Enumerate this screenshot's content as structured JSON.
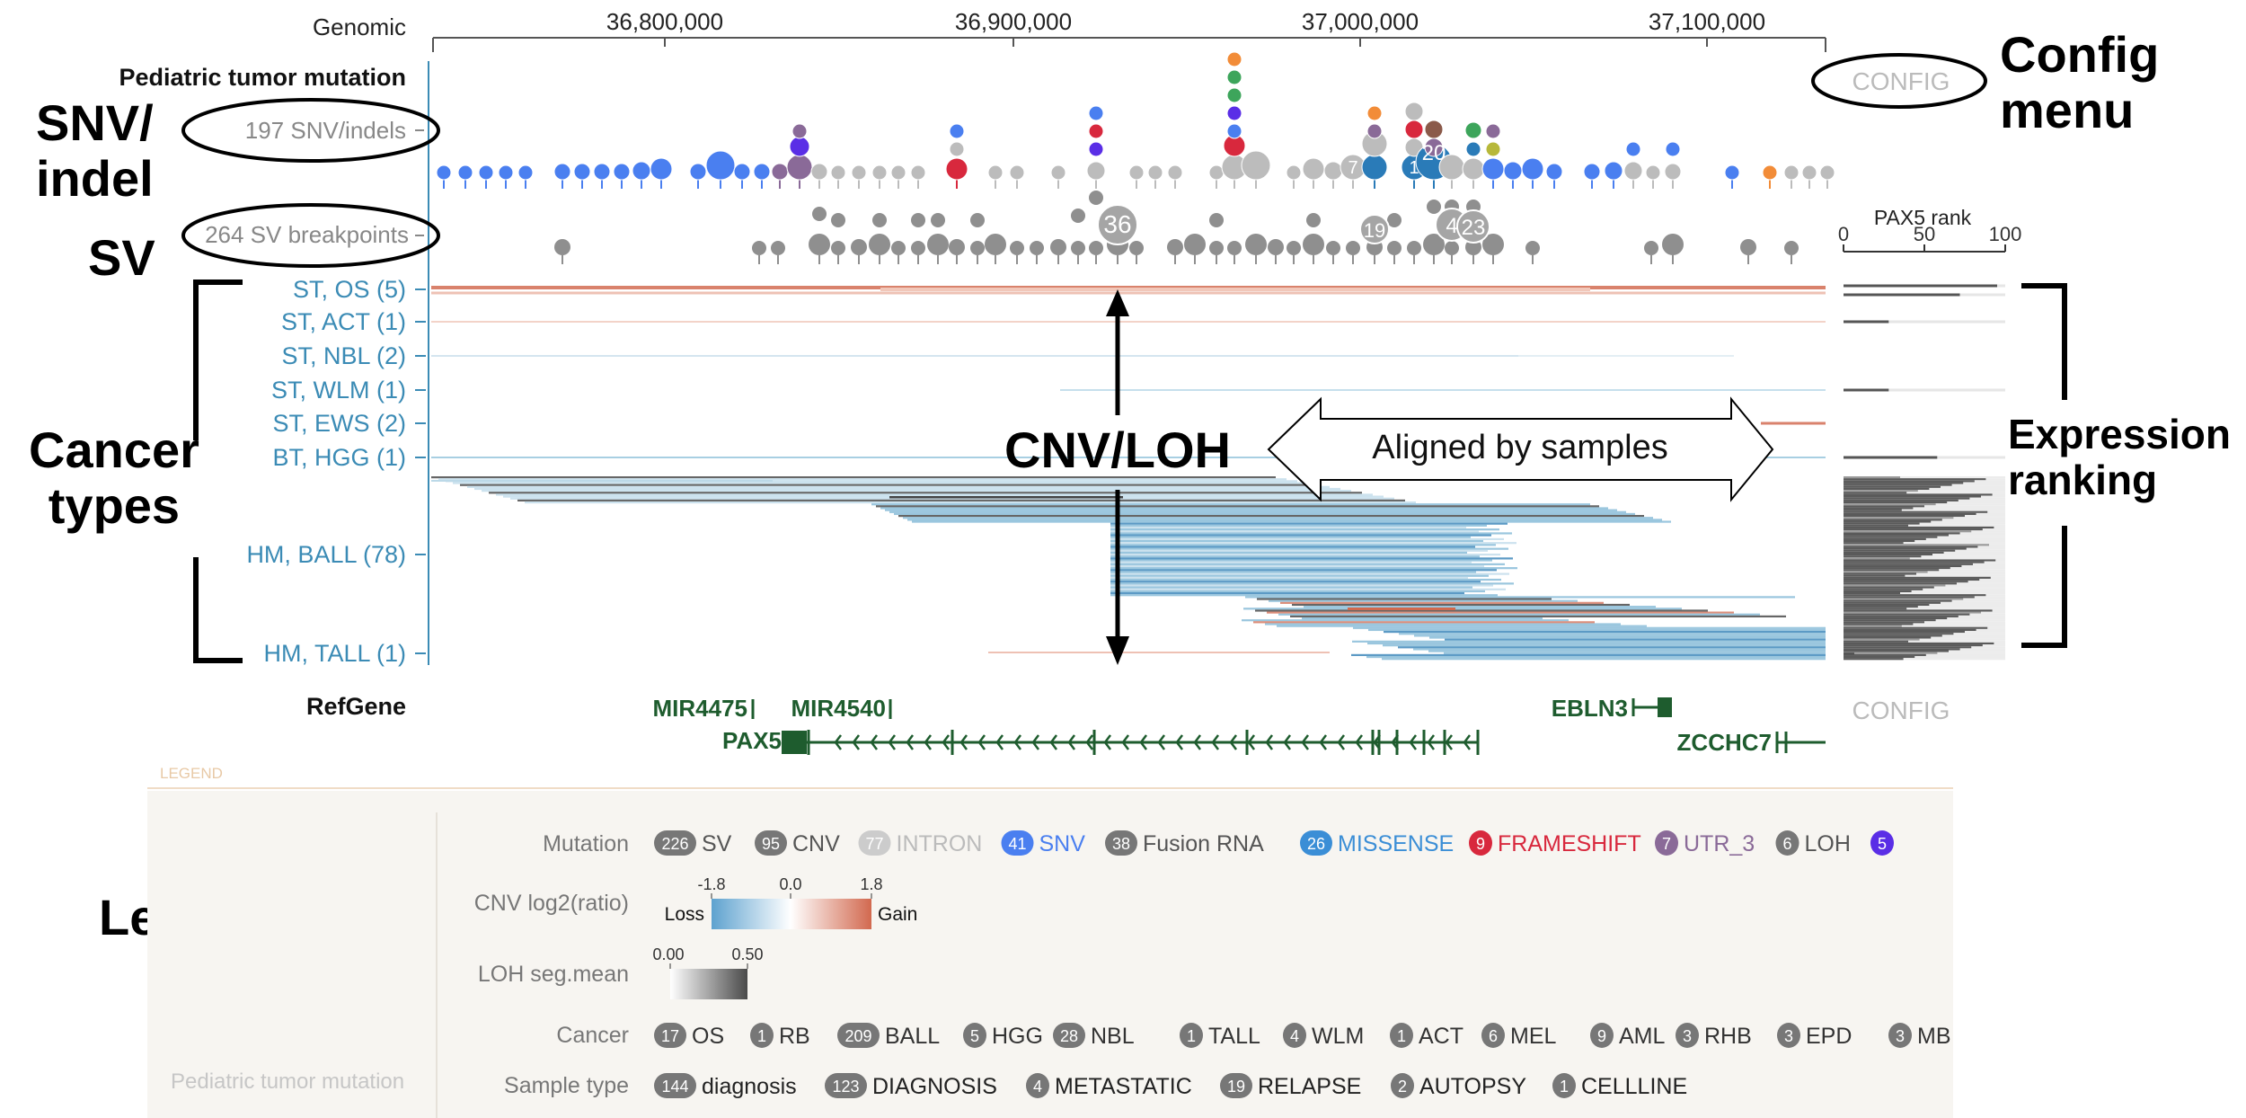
{
  "header": {
    "genomic_label": "Genomic",
    "ruler_ticks": [
      "36,800,000",
      "36,900,000",
      "37,000,000",
      "37,100,000"
    ]
  },
  "track": {
    "title": "Pediatric tumor mutation",
    "config_label": "CONFIG",
    "snv_label": "197 SNV/indels",
    "sv_label": "264 SV breakpoints",
    "snv_count_labels": [
      "7",
      "1",
      "20"
    ],
    "sv_count_labels": [
      "36",
      "19",
      "4",
      "23"
    ]
  },
  "cancer_types": [
    "ST, OS (5)",
    "ST, ACT (1)",
    "ST, NBL (2)",
    "ST, WLM (1)",
    "ST, EWS (2)",
    "BT, HGG (1)",
    "HM, BALL (78)",
    "HM, TALL (1)"
  ],
  "expression": {
    "title": "PAX5 rank",
    "ticks": [
      "0",
      "50",
      "100"
    ]
  },
  "refgene": {
    "label": "RefGene",
    "config_label": "CONFIG",
    "genes": [
      "MIR4475",
      "MIR4540",
      "PAX5",
      "EBLN3",
      "ZCCHC7"
    ]
  },
  "callouts": {
    "config_menu": "Config\nmenu",
    "snv_indel": "SNV/\nindel",
    "sv": "SV",
    "cancer_types": "Cancer\ntypes",
    "cnv_loh": "CNV/LOH",
    "aligned": "Aligned by samples",
    "expression_ranking": "Expression\nranking",
    "legends": "Legends"
  },
  "legend": {
    "header": "LEGEND",
    "footer": "Pediatric tumor mutation",
    "mutation_label": "Mutation",
    "mutation": [
      {
        "count": "226",
        "label": "SV",
        "color": "#555555",
        "badge": "#777777"
      },
      {
        "count": "95",
        "label": "CNV",
        "color": "#555555",
        "badge": "#777777"
      },
      {
        "count": "77",
        "label": "INTRON",
        "color": "#bbbbbb",
        "badge": "#cccccc"
      },
      {
        "count": "41",
        "label": "SNV",
        "color": "#4a7ff0",
        "badge": "#4a7ff0"
      },
      {
        "count": "38",
        "label": "Fusion RNA",
        "color": "#555555",
        "badge": "#777777"
      },
      {
        "count": "26",
        "label": "MISSENSE",
        "color": "#3b8ed6",
        "badge": "#3b8ed6"
      },
      {
        "count": "9",
        "label": "FRAMESHIFT",
        "color": "#d8283d",
        "badge": "#d8283d"
      },
      {
        "count": "7",
        "label": "UTR_3",
        "color": "#8a6a98",
        "badge": "#8a6a98"
      },
      {
        "count": "6",
        "label": "LOH",
        "color": "#555555",
        "badge": "#777777"
      },
      {
        "count": "5",
        "label": "",
        "color": "#5a2ee6",
        "badge": "#5a2ee6"
      }
    ],
    "cnv_label": "CNV log2(ratio)",
    "cnv_ticks": [
      "-1.8",
      "0.0",
      "1.8"
    ],
    "cnv_loss": "Loss",
    "cnv_gain": "Gain",
    "loh_label": "LOH seg.mean",
    "loh_ticks": [
      "0.00",
      "0.50"
    ],
    "cancer_label": "Cancer",
    "cancer": [
      {
        "count": "17",
        "label": "OS"
      },
      {
        "count": "1",
        "label": "RB"
      },
      {
        "count": "209",
        "label": "BALL"
      },
      {
        "count": "5",
        "label": "HGG"
      },
      {
        "count": "28",
        "label": "NBL"
      },
      {
        "count": "1",
        "label": "TALL"
      },
      {
        "count": "4",
        "label": "WLM"
      },
      {
        "count": "1",
        "label": "ACT"
      },
      {
        "count": "6",
        "label": "MEL"
      },
      {
        "count": "9",
        "label": "AML"
      },
      {
        "count": "3",
        "label": "RHB"
      },
      {
        "count": "3",
        "label": "EPD"
      },
      {
        "count": "3",
        "label": "MB"
      }
    ],
    "sample_label": "Sample type",
    "sample": [
      {
        "count": "144",
        "label": "diagnosis"
      },
      {
        "count": "123",
        "label": "DIAGNOSIS"
      },
      {
        "count": "4",
        "label": "METASTATIC"
      },
      {
        "count": "19",
        "label": "RELAPSE"
      },
      {
        "count": "2",
        "label": "AUTOPSY"
      },
      {
        "count": "1",
        "label": "CELLLINE"
      }
    ]
  },
  "colors": {
    "label_blue": "#3b8bb5",
    "gain": "#d9826c",
    "loss": "#8fc0da",
    "gene_green": "#1e5c2e",
    "legend_bg": "#f7f5f1"
  }
}
